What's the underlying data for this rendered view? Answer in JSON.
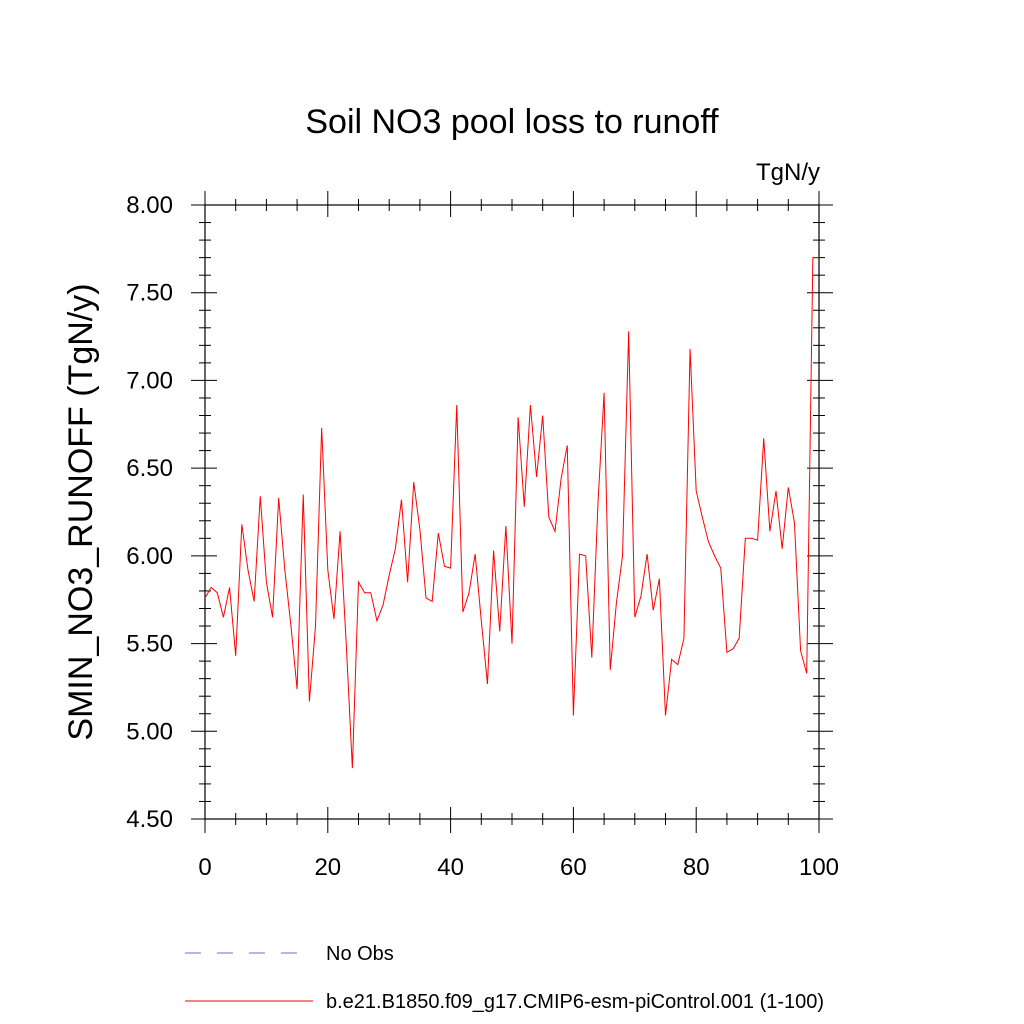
{
  "chart_data": {
    "type": "line",
    "title": "Soil NO3 pool loss to runoff",
    "units_label": "TgN/y",
    "xlabel": "",
    "ylabel": "SMIN_NO3_RUNOFF  (TgN/y)",
    "xlim": [
      0,
      100
    ],
    "ylim": [
      4.5,
      8.0
    ],
    "x_ticks": [
      0,
      20,
      40,
      60,
      80,
      100
    ],
    "x_tick_labels": [
      "0",
      "20",
      "40",
      "60",
      "80",
      "100"
    ],
    "y_ticks": [
      4.5,
      5.0,
      5.5,
      6.0,
      6.5,
      7.0,
      7.5,
      8.0
    ],
    "y_tick_labels": [
      "4.50",
      "5.00",
      "5.50",
      "6.00",
      "6.50",
      "7.00",
      "7.50",
      "8.00"
    ],
    "grid": false,
    "legend_position": "bottom",
    "series": [
      {
        "name": "b.e21.B1850.f09_g17.CMIP6-esm-piControl.001 (1-100)",
        "color": "#ff0000",
        "style": "solid",
        "x": [
          0,
          1,
          2,
          3,
          4,
          5,
          6,
          7,
          8,
          9,
          10,
          11,
          12,
          13,
          14,
          15,
          16,
          17,
          18,
          19,
          20,
          21,
          22,
          23,
          24,
          25,
          26,
          27,
          28,
          29,
          30,
          31,
          32,
          33,
          34,
          35,
          36,
          37,
          38,
          39,
          40,
          41,
          42,
          43,
          44,
          45,
          46,
          47,
          48,
          49,
          50,
          51,
          52,
          53,
          54,
          55,
          56,
          57,
          58,
          59,
          60,
          61,
          62,
          63,
          64,
          65,
          66,
          67,
          68,
          69,
          70,
          71,
          72,
          73,
          74,
          75,
          76,
          77,
          78,
          79,
          80,
          81,
          82,
          83,
          84,
          85,
          86,
          87,
          88,
          89,
          90,
          91,
          92,
          93,
          94,
          95,
          96,
          97,
          98,
          99,
          100
        ],
        "values": [
          5.76,
          5.82,
          5.79,
          5.65,
          5.82,
          5.43,
          6.18,
          5.92,
          5.74,
          6.34,
          5.85,
          5.65,
          6.33,
          5.92,
          5.6,
          5.24,
          6.35,
          5.17,
          5.6,
          6.73,
          5.92,
          5.64,
          6.14,
          5.5,
          4.79,
          5.85,
          5.79,
          5.79,
          5.63,
          5.72,
          5.89,
          6.04,
          6.32,
          5.85,
          6.42,
          6.15,
          5.76,
          5.74,
          6.13,
          5.94,
          5.93,
          6.86,
          5.68,
          5.79,
          6.01,
          5.63,
          5.27,
          6.03,
          5.57,
          6.17,
          5.5,
          6.79,
          6.28,
          6.86,
          6.45,
          6.8,
          6.22,
          6.14,
          6.44,
          6.63,
          5.09,
          6.01,
          6.0,
          5.42,
          6.3,
          6.93,
          5.35,
          5.73,
          6.0,
          7.28,
          5.65,
          5.77,
          6.01,
          5.69,
          5.87,
          5.09,
          5.41,
          5.38,
          5.53,
          7.18,
          6.37,
          6.22,
          6.08,
          6.0,
          5.93,
          5.45,
          5.47,
          5.53,
          6.1,
          6.1,
          6.09,
          6.67,
          6.14,
          6.37,
          6.04,
          6.39,
          6.19,
          5.46,
          5.33,
          7.7,
          7.7
        ]
      },
      {
        "name": "No Obs",
        "color": "#7b68c8",
        "style": "dashed",
        "x": [],
        "values": []
      }
    ]
  }
}
